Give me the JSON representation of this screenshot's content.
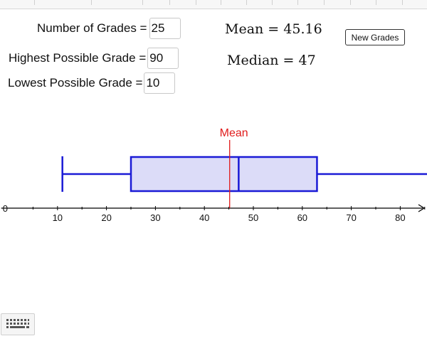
{
  "inputs": {
    "num_grades": {
      "label": "Number of Grades =",
      "value": "25"
    },
    "highest": {
      "label": "Highest Possible Grade =",
      "value": "90"
    },
    "lowest": {
      "label": "Lowest Possible Grade =",
      "value": "10"
    }
  },
  "stats": {
    "mean": "Mean = 45.16",
    "median": "Median = 47"
  },
  "buttons": {
    "new_grades": "New Grades"
  },
  "colors": {
    "box_stroke": "#1a1ad6",
    "box_fill": "#dcdcf8",
    "mean_line": "#e01b1b"
  },
  "icons": {
    "keyboard": "keyboard-icon"
  },
  "chart_data": {
    "type": "boxplot",
    "min": 11,
    "q1": 25,
    "median": 47,
    "mean": 45.16,
    "q3": 63,
    "max_whisker_extends_beyond_view": true,
    "mean_label": "Mean",
    "xlim": [
      -1.5,
      86
    ],
    "xticks": [
      10,
      20,
      30,
      40,
      50,
      60,
      70,
      80
    ],
    "origin_label": "0"
  }
}
